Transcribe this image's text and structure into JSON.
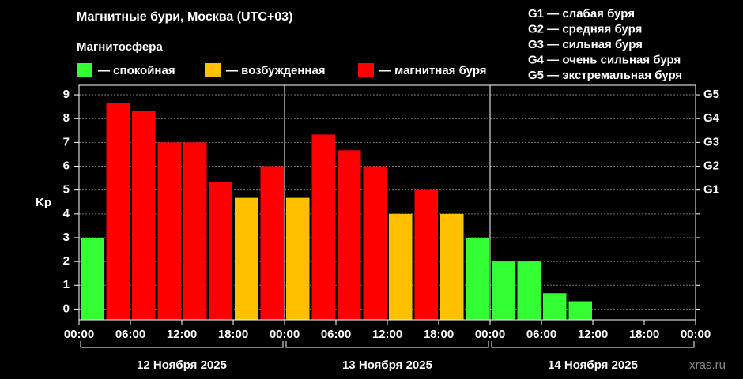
{
  "chart_data": {
    "type": "bar",
    "title": "Магнитные бури, Москва (UTC+03)",
    "subtitle": "Магнитосфера",
    "legend": [
      {
        "name": "— спокойная",
        "color": "#33ff33"
      },
      {
        "name": "— возбужденная",
        "color": "#ffc000"
      },
      {
        "name": "— магнитная буря",
        "color": "#ff0000"
      }
    ],
    "scale_notes": [
      "G1 — слабая буря",
      "G2 — средняя буря",
      "G3 — сильная буря",
      "G4 — очень сильная буря",
      "G5 — экстремальная буря"
    ],
    "ylabel": "Kp",
    "x": [
      0,
      3,
      6,
      9,
      12,
      15,
      18,
      21,
      24,
      27,
      30,
      33,
      36,
      39,
      42,
      45,
      48,
      51,
      54,
      57
    ],
    "bar_width": 3,
    "values": [
      3,
      8.67,
      8.33,
      7,
      7,
      5.33,
      4.67,
      6,
      4.67,
      7.33,
      6.67,
      6,
      4,
      5,
      4,
      3,
      2,
      2,
      0.67,
      0.33
    ],
    "colors": [
      "#33ff33",
      "#ff0000",
      "#ff0000",
      "#ff0000",
      "#ff0000",
      "#ff0000",
      "#ffc000",
      "#ff0000",
      "#ffc000",
      "#ff0000",
      "#ff0000",
      "#ff0000",
      "#ffc000",
      "#ff0000",
      "#ffc000",
      "#33ff33",
      "#33ff33",
      "#33ff33",
      "#33ff33",
      "#33ff33"
    ],
    "xlim": [
      0,
      72
    ],
    "xticks": [
      {
        "value": 0,
        "label": "00:00"
      },
      {
        "value": 6,
        "label": "06:00"
      },
      {
        "value": 12,
        "label": "12:00"
      },
      {
        "value": 18,
        "label": "18:00"
      },
      {
        "value": 24,
        "label": "00:00"
      },
      {
        "value": 30,
        "label": "06:00"
      },
      {
        "value": 36,
        "label": "12:00"
      },
      {
        "value": 42,
        "label": "18:00"
      },
      {
        "value": 48,
        "label": "00:00"
      },
      {
        "value": 54,
        "label": "06:00"
      },
      {
        "value": 60,
        "label": "12:00"
      },
      {
        "value": 66,
        "label": "18:00"
      },
      {
        "value": 72,
        "label": "00:00"
      }
    ],
    "days": [
      {
        "label": "12 Ноября 2025",
        "from": 0,
        "to": 24
      },
      {
        "label": "13 Ноября 2025",
        "from": 24,
        "to": 48
      },
      {
        "label": "14 Ноября 2025",
        "from": 48,
        "to": 72
      }
    ],
    "ylim": [
      -0.45,
      9.4
    ],
    "yticks": [
      0,
      1,
      2,
      3,
      4,
      5,
      6,
      7,
      8,
      9
    ],
    "y2lim": [
      -0.45,
      9.4
    ],
    "y2ticks": [
      {
        "value": 5,
        "label": "G1"
      },
      {
        "value": 6,
        "label": "G2"
      },
      {
        "value": 7,
        "label": "G3"
      },
      {
        "value": 8,
        "label": "G4"
      },
      {
        "value": 9,
        "label": "G5"
      }
    ],
    "grid": true,
    "watermark": "xras.ru"
  }
}
